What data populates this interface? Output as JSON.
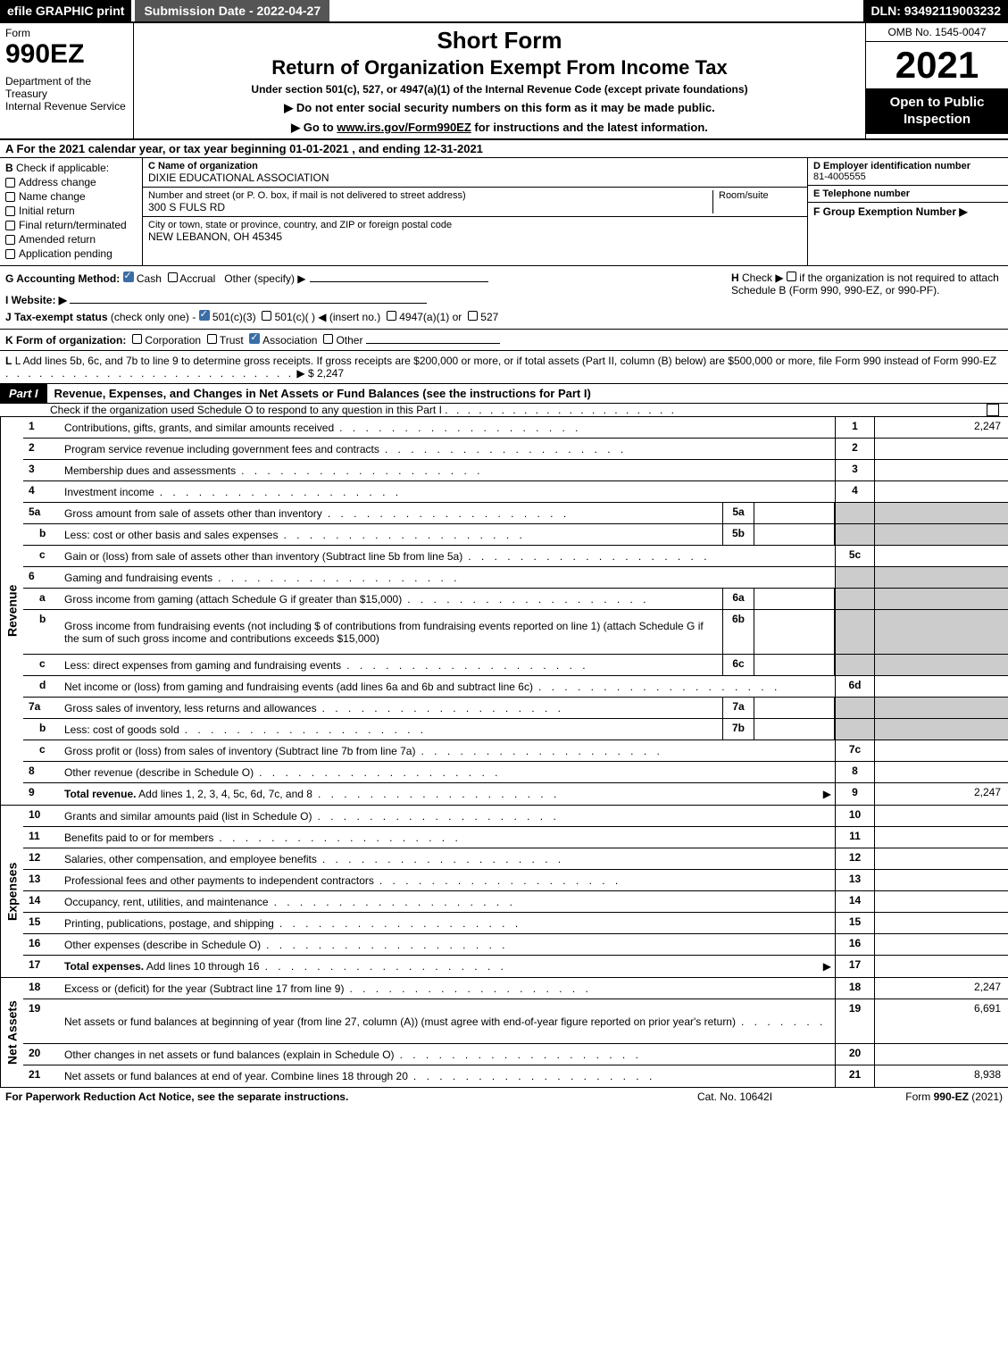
{
  "top_bar": {
    "efile": "efile GRAPHIC print",
    "submission": "Submission Date - 2022-04-27",
    "dln": "DLN: 93492119003232"
  },
  "header": {
    "form_label": "Form",
    "form_number": "990EZ",
    "dept": "Department of the Treasury\nInternal Revenue Service",
    "short_form": "Short Form",
    "return_title": "Return of Organization Exempt From Income Tax",
    "under_section": "Under section 501(c), 527, or 4947(a)(1) of the Internal Revenue Code (except private foundations)",
    "instr1": "▶ Do not enter social security numbers on this form as it may be made public.",
    "instr2_pre": "▶ Go to ",
    "instr2_link": "www.irs.gov/Form990EZ",
    "instr2_post": " for instructions and the latest information.",
    "omb": "OMB No. 1545-0047",
    "year": "2021",
    "open_public": "Open to Public Inspection"
  },
  "row_a": "A  For the 2021 calendar year, or tax year beginning 01-01-2021 , and ending 12-31-2021",
  "section_b": {
    "label": "B",
    "check_if": "Check if applicable:",
    "items": [
      "Address change",
      "Name change",
      "Initial return",
      "Final return/terminated",
      "Amended return",
      "Application pending"
    ]
  },
  "section_c": {
    "name_label": "C Name of organization",
    "name_value": "DIXIE EDUCATIONAL ASSOCIATION",
    "addr_label": "Number and street (or P. O. box, if mail is not delivered to street address)",
    "room_label": "Room/suite",
    "addr_value": "300 S FULS RD",
    "city_label": "City or town, state or province, country, and ZIP or foreign postal code",
    "city_value": "NEW LEBANON, OH  45345"
  },
  "section_d": {
    "d_label": "D Employer identification number",
    "d_value": "81-4005555",
    "e_label": "E Telephone number",
    "e_value": "",
    "f_label": "F Group Exemption Number  ▶",
    "f_value": ""
  },
  "row_g": {
    "label": "G Accounting Method:",
    "cash": "Cash",
    "accrual": "Accrual",
    "other": "Other (specify) ▶"
  },
  "row_h": {
    "label": "H",
    "text": "Check ▶",
    "text2": "if the organization is not required to attach Schedule B (Form 990, 990-EZ, or 990-PF)."
  },
  "row_i": {
    "label": "I Website: ▶",
    "value": ""
  },
  "row_j": {
    "label": "J Tax-exempt status",
    "sub": "(check only one) -",
    "opt1": "501(c)(3)",
    "opt2": "501(c)(  )",
    "opt2_insert": "◀ (insert no.)",
    "opt3": "4947(a)(1) or",
    "opt4": "527"
  },
  "row_k": {
    "label": "K Form of organization:",
    "opts": [
      "Corporation",
      "Trust",
      "Association",
      "Other"
    ]
  },
  "row_l": {
    "text": "L Add lines 5b, 6c, and 7b to line 9 to determine gross receipts. If gross receipts are $200,000 or more, or if total assets (Part II, column (B) below) are $500,000 or more, file Form 990 instead of Form 990-EZ",
    "amount": "▶ $ 2,247"
  },
  "part1": {
    "badge": "Part I",
    "title": "Revenue, Expenses, and Changes in Net Assets or Fund Balances (see the instructions for Part I)",
    "sub": "Check if the organization used Schedule O to respond to any question in this Part I"
  },
  "vertical_labels": {
    "revenue": "Revenue",
    "expenses": "Expenses",
    "netassets": "Net Assets"
  },
  "revenue_lines": [
    {
      "num": "1",
      "text": "Contributions, gifts, grants, and similar amounts received",
      "box": "1",
      "val": "2,247"
    },
    {
      "num": "2",
      "text": "Program service revenue including government fees and contracts",
      "box": "2",
      "val": ""
    },
    {
      "num": "3",
      "text": "Membership dues and assessments",
      "box": "3",
      "val": ""
    },
    {
      "num": "4",
      "text": "Investment income",
      "box": "4",
      "val": ""
    },
    {
      "num": "5a",
      "text": "Gross amount from sale of assets other than inventory",
      "mini": "5a",
      "minival": "",
      "shaded": true
    },
    {
      "num": "b",
      "sub": true,
      "text": "Less: cost or other basis and sales expenses",
      "mini": "5b",
      "minival": "",
      "shaded": true
    },
    {
      "num": "c",
      "sub": true,
      "text": "Gain or (loss) from sale of assets other than inventory (Subtract line 5b from line 5a)",
      "box": "5c",
      "val": ""
    },
    {
      "num": "6",
      "text": "Gaming and fundraising events",
      "shaded": true,
      "noval": true
    },
    {
      "num": "a",
      "sub": true,
      "text": "Gross income from gaming (attach Schedule G if greater than $15,000)",
      "mini": "6a",
      "minival": "",
      "shaded": true
    },
    {
      "num": "b",
      "sub": true,
      "text": "Gross income from fundraising events (not including $            of contributions from fundraising events reported on line 1) (attach Schedule G if the sum of such gross income and contributions exceeds $15,000)",
      "mini": "6b",
      "minival": "",
      "shaded": true,
      "tall": true
    },
    {
      "num": "c",
      "sub": true,
      "text": "Less: direct expenses from gaming and fundraising events",
      "mini": "6c",
      "minival": "",
      "shaded": true
    },
    {
      "num": "d",
      "sub": true,
      "text": "Net income or (loss) from gaming and fundraising events (add lines 6a and 6b and subtract line 6c)",
      "box": "6d",
      "val": ""
    },
    {
      "num": "7a",
      "text": "Gross sales of inventory, less returns and allowances",
      "mini": "7a",
      "minival": "",
      "shaded": true
    },
    {
      "num": "b",
      "sub": true,
      "text": "Less: cost of goods sold",
      "mini": "7b",
      "minival": "",
      "shaded": true
    },
    {
      "num": "c",
      "sub": true,
      "text": "Gross profit or (loss) from sales of inventory (Subtract line 7b from line 7a)",
      "box": "7c",
      "val": ""
    },
    {
      "num": "8",
      "text": "Other revenue (describe in Schedule O)",
      "box": "8",
      "val": ""
    },
    {
      "num": "9",
      "text": "Total revenue. Add lines 1, 2, 3, 4, 5c, 6d, 7c, and 8",
      "box": "9",
      "val": "2,247",
      "bold": true,
      "arrow": true
    }
  ],
  "expense_lines": [
    {
      "num": "10",
      "text": "Grants and similar amounts paid (list in Schedule O)",
      "box": "10",
      "val": ""
    },
    {
      "num": "11",
      "text": "Benefits paid to or for members",
      "box": "11",
      "val": ""
    },
    {
      "num": "12",
      "text": "Salaries, other compensation, and employee benefits",
      "box": "12",
      "val": ""
    },
    {
      "num": "13",
      "text": "Professional fees and other payments to independent contractors",
      "box": "13",
      "val": ""
    },
    {
      "num": "14",
      "text": "Occupancy, rent, utilities, and maintenance",
      "box": "14",
      "val": ""
    },
    {
      "num": "15",
      "text": "Printing, publications, postage, and shipping",
      "box": "15",
      "val": ""
    },
    {
      "num": "16",
      "text": "Other expenses (describe in Schedule O)",
      "box": "16",
      "val": ""
    },
    {
      "num": "17",
      "text": "Total expenses. Add lines 10 through 16",
      "box": "17",
      "val": "",
      "bold": true,
      "arrow": true
    }
  ],
  "netasset_lines": [
    {
      "num": "18",
      "text": "Excess or (deficit) for the year (Subtract line 17 from line 9)",
      "box": "18",
      "val": "2,247"
    },
    {
      "num": "19",
      "text": "Net assets or fund balances at beginning of year (from line 27, column (A)) (must agree with end-of-year figure reported on prior year's return)",
      "box": "19",
      "val": "6,691",
      "tall": true,
      "shadedfirst": true
    },
    {
      "num": "20",
      "text": "Other changes in net assets or fund balances (explain in Schedule O)",
      "box": "20",
      "val": ""
    },
    {
      "num": "21",
      "text": "Net assets or fund balances at end of year. Combine lines 18 through 20",
      "box": "21",
      "val": "8,938"
    }
  ],
  "footer": {
    "left": "For Paperwork Reduction Act Notice, see the separate instructions.",
    "center": "Cat. No. 10642I",
    "right_pre": "Form ",
    "right_bold": "990-EZ",
    "right_post": " (2021)"
  },
  "colors": {
    "black": "#000000",
    "white": "#ffffff",
    "shaded": "#cccccc",
    "darkgrey": "#555555",
    "checkbox_fill": "#3a6ea5"
  }
}
